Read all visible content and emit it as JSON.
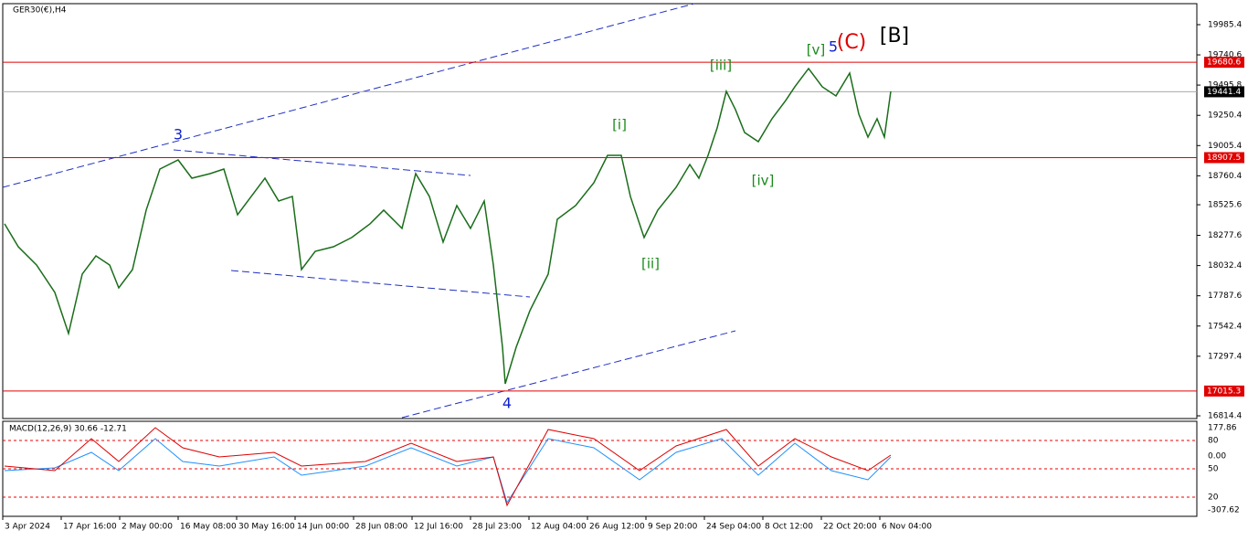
{
  "symbol": "GER30(€),H4",
  "price_axis": {
    "ylim": [
      16814.6,
      19985.4
    ],
    "ticks": [
      19985.4,
      19740.6,
      19495.8,
      19250.4,
      19005.4,
      18760.4,
      18525.6,
      18277.6,
      18032.4,
      17787.6,
      17542.4,
      17297.4,
      16814.4
    ]
  },
  "levels": [
    {
      "price": 19680.6,
      "color": "#e00000"
    },
    {
      "price": 19441.4,
      "color": "#000000"
    },
    {
      "price": 18907.5,
      "color": "#e00000"
    },
    {
      "price": 17015.3,
      "color": "#e00000"
    }
  ],
  "price_path": {
    "color": "#1a6d1a",
    "xlim": [
      0,
      1307
    ],
    "x": [
      2,
      17,
      37,
      57,
      72,
      87,
      102,
      117,
      127,
      142,
      157,
      172,
      192,
      207,
      227,
      242,
      257,
      272,
      287,
      302,
      317,
      327,
      342,
      362,
      382,
      402,
      417,
      437,
      452,
      467,
      482,
      497,
      512,
      527,
      537,
      547,
      550,
      562,
      577,
      597,
      607,
      627,
      647,
      662,
      677,
      687,
      702,
      717,
      737,
      752,
      762,
      772,
      782,
      792,
      802,
      812,
      827,
      842,
      857,
      867,
      882,
      897,
      912,
      927,
      937,
      947,
      957,
      965,
      972
    ],
    "values": [
      18371,
      18185,
      18037,
      17815,
      17482,
      17963,
      18111,
      18037,
      17852,
      18000,
      18482,
      18815,
      18889,
      18741,
      18778,
      18815,
      18445,
      18593,
      18741,
      18556,
      18593,
      18000,
      18148,
      18185,
      18260,
      18371,
      18482,
      18334,
      18778,
      18593,
      18223,
      18519,
      18334,
      18556,
      18037,
      17371,
      17074,
      17371,
      17667,
      17963,
      18408,
      18519,
      18704,
      18926,
      18926,
      18593,
      18260,
      18482,
      18667,
      18852,
      18741,
      18926,
      19149,
      19445,
      19297,
      19111,
      19037,
      19223,
      19371,
      19482,
      19630,
      19482,
      19408,
      19593,
      19260,
      19074,
      19223,
      19074,
      19445
    ]
  },
  "wave_labels": [
    {
      "text": "3",
      "color": "#1020d0"
    },
    {
      "text": "4",
      "color": "#1020d0"
    },
    {
      "text": "5",
      "color": "#1020d0"
    },
    {
      "text": "(C)",
      "color": "#e00000"
    },
    {
      "text": "[B]",
      "color": "#000000"
    },
    {
      "text": "[i]",
      "color": "#1a8a1a"
    },
    {
      "text": "[ii]",
      "color": "#1a8a1a"
    },
    {
      "text": "[iii]",
      "color": "#1a8a1a"
    },
    {
      "text": "[iv]",
      "color": "#1a8a1a"
    },
    {
      "text": "[v]",
      "color": "#1a8a1a"
    }
  ],
  "macd": {
    "label": "MACD(12,26,9) 30.66 -12.71",
    "axis": [
      "177.86",
      "80",
      "0.00",
      "50",
      "20",
      "-307.62"
    ]
  },
  "time_axis": {
    "labels": [
      "3 Apr 2024",
      "17 Apr 16:00",
      "2 May 00:00",
      "16 May 08:00",
      "30 May 16:00",
      "14 Jun 00:00",
      "28 Jun 08:00",
      "12 Jul 16:00",
      "28 Jul 23:00",
      "12 Aug 04:00",
      "26 Aug 12:00",
      "9 Sep 20:00",
      "24 Sep 04:00",
      "8 Oct 12:00",
      "22 Oct 20:00",
      "6 Nov 04:00"
    ]
  }
}
